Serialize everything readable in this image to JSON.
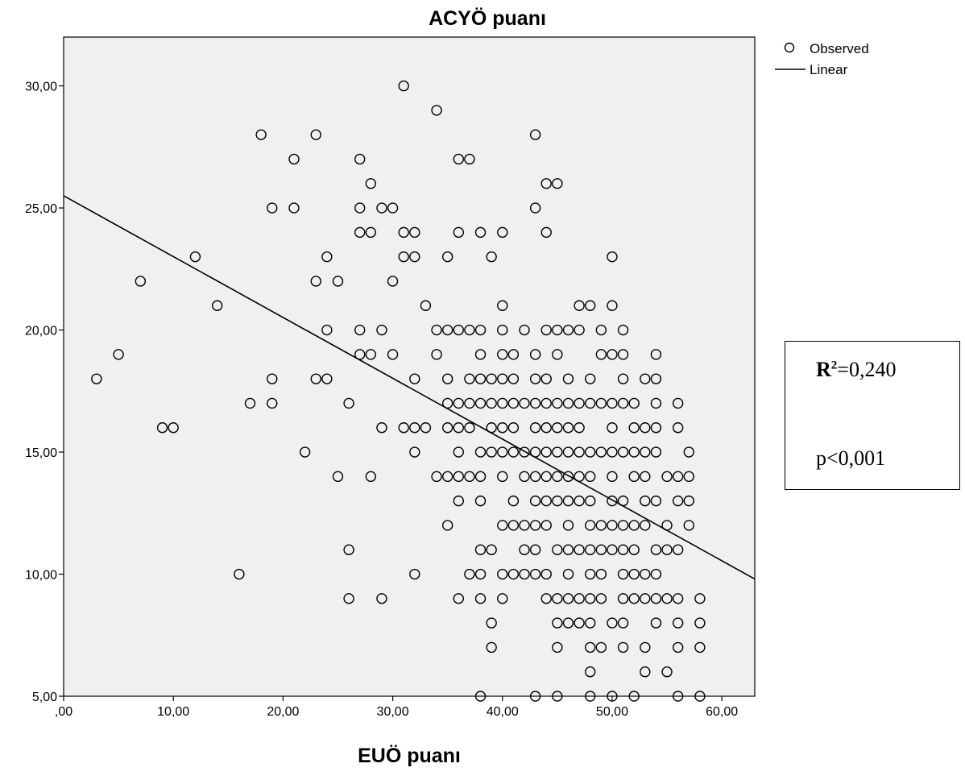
{
  "chart_data": {
    "type": "scatter",
    "title": "ACYÖ puanı",
    "xlabel": "EUÖ puanı",
    "ylabel": "",
    "xlim": [
      0,
      63
    ],
    "ylim": [
      5,
      32
    ],
    "x_ticks": [
      0,
      10,
      20,
      30,
      40,
      50,
      60
    ],
    "x_tick_labels": [
      ",00",
      "10,00",
      "20,00",
      "30,00",
      "40,00",
      "50,00",
      "60,00"
    ],
    "y_ticks": [
      5,
      10,
      15,
      20,
      25,
      30
    ],
    "y_tick_labels": [
      "5,00",
      "10,00",
      "15,00",
      "20,00",
      "25,00",
      "30,00"
    ],
    "grid": false,
    "legend_position": "top-right",
    "legend": [
      {
        "label": "Observed",
        "marker": "circle"
      },
      {
        "label": "Linear",
        "marker": "line"
      }
    ],
    "series": [
      {
        "name": "Observed",
        "points": [
          [
            31,
            30
          ],
          [
            34,
            29
          ],
          [
            18,
            28
          ],
          [
            23,
            28
          ],
          [
            43,
            28
          ],
          [
            21,
            27
          ],
          [
            27,
            27
          ],
          [
            36,
            27
          ],
          [
            37,
            27
          ],
          [
            28,
            26
          ],
          [
            44,
            26
          ],
          [
            45,
            26
          ],
          [
            19,
            25
          ],
          [
            21,
            25
          ],
          [
            27,
            25
          ],
          [
            29,
            25
          ],
          [
            30,
            25
          ],
          [
            43,
            25
          ],
          [
            27,
            24
          ],
          [
            28,
            24
          ],
          [
            31,
            24
          ],
          [
            32,
            24
          ],
          [
            36,
            24
          ],
          [
            38,
            24
          ],
          [
            40,
            24
          ],
          [
            44,
            24
          ],
          [
            12,
            23
          ],
          [
            24,
            23
          ],
          [
            31,
            23
          ],
          [
            32,
            23
          ],
          [
            35,
            23
          ],
          [
            39,
            23
          ],
          [
            50,
            23
          ],
          [
            7,
            22
          ],
          [
            23,
            22
          ],
          [
            25,
            22
          ],
          [
            30,
            22
          ],
          [
            14,
            21
          ],
          [
            33,
            21
          ],
          [
            40,
            21
          ],
          [
            47,
            21
          ],
          [
            48,
            21
          ],
          [
            50,
            21
          ],
          [
            24,
            20
          ],
          [
            27,
            20
          ],
          [
            29,
            20
          ],
          [
            34,
            20
          ],
          [
            35,
            20
          ],
          [
            36,
            20
          ],
          [
            37,
            20
          ],
          [
            38,
            20
          ],
          [
            40,
            20
          ],
          [
            42,
            20
          ],
          [
            44,
            20
          ],
          [
            45,
            20
          ],
          [
            46,
            20
          ],
          [
            47,
            20
          ],
          [
            49,
            20
          ],
          [
            51,
            20
          ],
          [
            5,
            19
          ],
          [
            27,
            19
          ],
          [
            28,
            19
          ],
          [
            30,
            19
          ],
          [
            34,
            19
          ],
          [
            38,
            19
          ],
          [
            40,
            19
          ],
          [
            41,
            19
          ],
          [
            43,
            19
          ],
          [
            45,
            19
          ],
          [
            49,
            19
          ],
          [
            50,
            19
          ],
          [
            51,
            19
          ],
          [
            54,
            19
          ],
          [
            3,
            18
          ],
          [
            19,
            18
          ],
          [
            23,
            18
          ],
          [
            24,
            18
          ],
          [
            32,
            18
          ],
          [
            35,
            18
          ],
          [
            37,
            18
          ],
          [
            38,
            18
          ],
          [
            39,
            18
          ],
          [
            40,
            18
          ],
          [
            41,
            18
          ],
          [
            43,
            18
          ],
          [
            44,
            18
          ],
          [
            46,
            18
          ],
          [
            48,
            18
          ],
          [
            51,
            18
          ],
          [
            53,
            18
          ],
          [
            54,
            18
          ],
          [
            17,
            17
          ],
          [
            19,
            17
          ],
          [
            26,
            17
          ],
          [
            35,
            17
          ],
          [
            36,
            17
          ],
          [
            37,
            17
          ],
          [
            38,
            17
          ],
          [
            39,
            17
          ],
          [
            40,
            17
          ],
          [
            41,
            17
          ],
          [
            42,
            17
          ],
          [
            43,
            17
          ],
          [
            44,
            17
          ],
          [
            45,
            17
          ],
          [
            46,
            17
          ],
          [
            47,
            17
          ],
          [
            48,
            17
          ],
          [
            49,
            17
          ],
          [
            50,
            17
          ],
          [
            51,
            17
          ],
          [
            52,
            17
          ],
          [
            54,
            17
          ],
          [
            56,
            17
          ],
          [
            9,
            16
          ],
          [
            10,
            16
          ],
          [
            29,
            16
          ],
          [
            31,
            16
          ],
          [
            32,
            16
          ],
          [
            33,
            16
          ],
          [
            35,
            16
          ],
          [
            36,
            16
          ],
          [
            37,
            16
          ],
          [
            39,
            16
          ],
          [
            40,
            16
          ],
          [
            41,
            16
          ],
          [
            43,
            16
          ],
          [
            44,
            16
          ],
          [
            45,
            16
          ],
          [
            46,
            16
          ],
          [
            47,
            16
          ],
          [
            50,
            16
          ],
          [
            52,
            16
          ],
          [
            53,
            16
          ],
          [
            54,
            16
          ],
          [
            56,
            16
          ],
          [
            22,
            15
          ],
          [
            32,
            15
          ],
          [
            36,
            15
          ],
          [
            38,
            15
          ],
          [
            39,
            15
          ],
          [
            40,
            15
          ],
          [
            41,
            15
          ],
          [
            42,
            15
          ],
          [
            43,
            15
          ],
          [
            44,
            15
          ],
          [
            45,
            15
          ],
          [
            46,
            15
          ],
          [
            47,
            15
          ],
          [
            48,
            15
          ],
          [
            49,
            15
          ],
          [
            50,
            15
          ],
          [
            51,
            15
          ],
          [
            52,
            15
          ],
          [
            53,
            15
          ],
          [
            54,
            15
          ],
          [
            57,
            15
          ],
          [
            25,
            14
          ],
          [
            28,
            14
          ],
          [
            34,
            14
          ],
          [
            35,
            14
          ],
          [
            36,
            14
          ],
          [
            37,
            14
          ],
          [
            38,
            14
          ],
          [
            40,
            14
          ],
          [
            42,
            14
          ],
          [
            43,
            14
          ],
          [
            44,
            14
          ],
          [
            45,
            14
          ],
          [
            46,
            14
          ],
          [
            47,
            14
          ],
          [
            48,
            14
          ],
          [
            50,
            14
          ],
          [
            52,
            14
          ],
          [
            53,
            14
          ],
          [
            55,
            14
          ],
          [
            56,
            14
          ],
          [
            57,
            14
          ],
          [
            36,
            13
          ],
          [
            38,
            13
          ],
          [
            41,
            13
          ],
          [
            43,
            13
          ],
          [
            44,
            13
          ],
          [
            45,
            13
          ],
          [
            46,
            13
          ],
          [
            47,
            13
          ],
          [
            48,
            13
          ],
          [
            50,
            13
          ],
          [
            51,
            13
          ],
          [
            53,
            13
          ],
          [
            54,
            13
          ],
          [
            56,
            13
          ],
          [
            57,
            13
          ],
          [
            35,
            12
          ],
          [
            40,
            12
          ],
          [
            41,
            12
          ],
          [
            42,
            12
          ],
          [
            43,
            12
          ],
          [
            44,
            12
          ],
          [
            46,
            12
          ],
          [
            48,
            12
          ],
          [
            49,
            12
          ],
          [
            50,
            12
          ],
          [
            51,
            12
          ],
          [
            52,
            12
          ],
          [
            53,
            12
          ],
          [
            55,
            12
          ],
          [
            57,
            12
          ],
          [
            26,
            11
          ],
          [
            38,
            11
          ],
          [
            39,
            11
          ],
          [
            42,
            11
          ],
          [
            43,
            11
          ],
          [
            45,
            11
          ],
          [
            46,
            11
          ],
          [
            47,
            11
          ],
          [
            48,
            11
          ],
          [
            49,
            11
          ],
          [
            50,
            11
          ],
          [
            51,
            11
          ],
          [
            52,
            11
          ],
          [
            54,
            11
          ],
          [
            55,
            11
          ],
          [
            56,
            11
          ],
          [
            16,
            10
          ],
          [
            32,
            10
          ],
          [
            37,
            10
          ],
          [
            38,
            10
          ],
          [
            40,
            10
          ],
          [
            41,
            10
          ],
          [
            42,
            10
          ],
          [
            43,
            10
          ],
          [
            44,
            10
          ],
          [
            46,
            10
          ],
          [
            48,
            10
          ],
          [
            49,
            10
          ],
          [
            51,
            10
          ],
          [
            52,
            10
          ],
          [
            53,
            10
          ],
          [
            54,
            10
          ],
          [
            26,
            9
          ],
          [
            29,
            9
          ],
          [
            36,
            9
          ],
          [
            38,
            9
          ],
          [
            40,
            9
          ],
          [
            44,
            9
          ],
          [
            45,
            9
          ],
          [
            46,
            9
          ],
          [
            47,
            9
          ],
          [
            48,
            9
          ],
          [
            49,
            9
          ],
          [
            51,
            9
          ],
          [
            52,
            9
          ],
          [
            53,
            9
          ],
          [
            54,
            9
          ],
          [
            55,
            9
          ],
          [
            56,
            9
          ],
          [
            58,
            9
          ],
          [
            39,
            8
          ],
          [
            45,
            8
          ],
          [
            46,
            8
          ],
          [
            47,
            8
          ],
          [
            48,
            8
          ],
          [
            50,
            8
          ],
          [
            51,
            8
          ],
          [
            54,
            8
          ],
          [
            56,
            8
          ],
          [
            58,
            8
          ],
          [
            39,
            7
          ],
          [
            45,
            7
          ],
          [
            48,
            7
          ],
          [
            49,
            7
          ],
          [
            51,
            7
          ],
          [
            53,
            7
          ],
          [
            56,
            7
          ],
          [
            58,
            7
          ],
          [
            48,
            6
          ],
          [
            53,
            6
          ],
          [
            55,
            6
          ],
          [
            38,
            5
          ],
          [
            43,
            5
          ],
          [
            45,
            5
          ],
          [
            48,
            5
          ],
          [
            50,
            5
          ],
          [
            52,
            5
          ],
          [
            56,
            5
          ],
          [
            58,
            5
          ]
        ]
      },
      {
        "name": "Linear",
        "x": [
          0,
          63
        ],
        "y": [
          25.5,
          9.8
        ]
      }
    ]
  },
  "stats": {
    "r2_symbol": "R",
    "r2_exponent": "2",
    "r2_value": "=0,240",
    "p_text": "p<0,001"
  }
}
